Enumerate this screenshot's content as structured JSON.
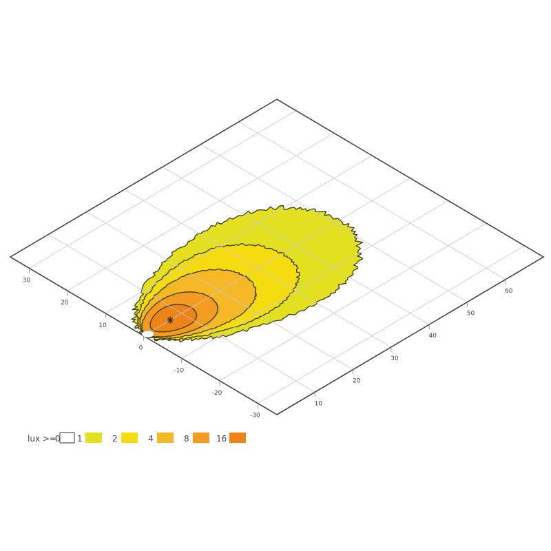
{
  "chart_data": {
    "type": "contour",
    "title": "",
    "xlabel": "",
    "ylabel": "",
    "xlim": [
      0,
      70
    ],
    "ylim": [
      -35,
      35
    ],
    "grid": true,
    "x_ticks": [
      "10",
      "20",
      "30",
      "40",
      "50",
      "60"
    ],
    "y_ticks": [
      "30",
      "20",
      "10",
      "0",
      "-10",
      "-20",
      "-30"
    ],
    "legend": {
      "position": "bottom-left",
      "prefix": "lux >=",
      "levels": [
        {
          "label": "0",
          "color": "#ffffff"
        },
        {
          "label": "1",
          "color": "#e2e021"
        },
        {
          "label": "2",
          "color": "#f4dc10"
        },
        {
          "label": "4",
          "color": "#f5b928"
        },
        {
          "label": "8",
          "color": "#f39c20"
        },
        {
          "label": "16",
          "color": "#ee8418"
        }
      ]
    },
    "light_source": {
      "x": 0,
      "y": 0
    },
    "max_point": {
      "x": 7,
      "y": 0
    },
    "contours": [
      {
        "level": 1,
        "color": "#e2e021",
        "center_x": 26,
        "center_y": 0,
        "semi_x": 25.5,
        "semi_y": 15
      },
      {
        "level": 2,
        "color": "#f4dc10",
        "center_x": 18.5,
        "center_y": 0,
        "semi_x": 18,
        "semi_y": 11
      },
      {
        "level": 4,
        "color": "#f5b928",
        "center_x": 13.5,
        "center_y": 0,
        "semi_x": 13,
        "semi_y": 8
      },
      {
        "level": 8,
        "color": "#f39c20",
        "center_x": 9,
        "center_y": 0,
        "semi_x": 8.3,
        "semi_y": 5.5
      },
      {
        "level": 16,
        "color": "#ee8418",
        "center_x": 7.5,
        "center_y": 0,
        "semi_x": 5,
        "semi_y": 3.5
      }
    ],
    "colors": {
      "frame": "#444444",
      "grid": "#c9c9c9",
      "contour_line": "#3a3a1a"
    }
  }
}
